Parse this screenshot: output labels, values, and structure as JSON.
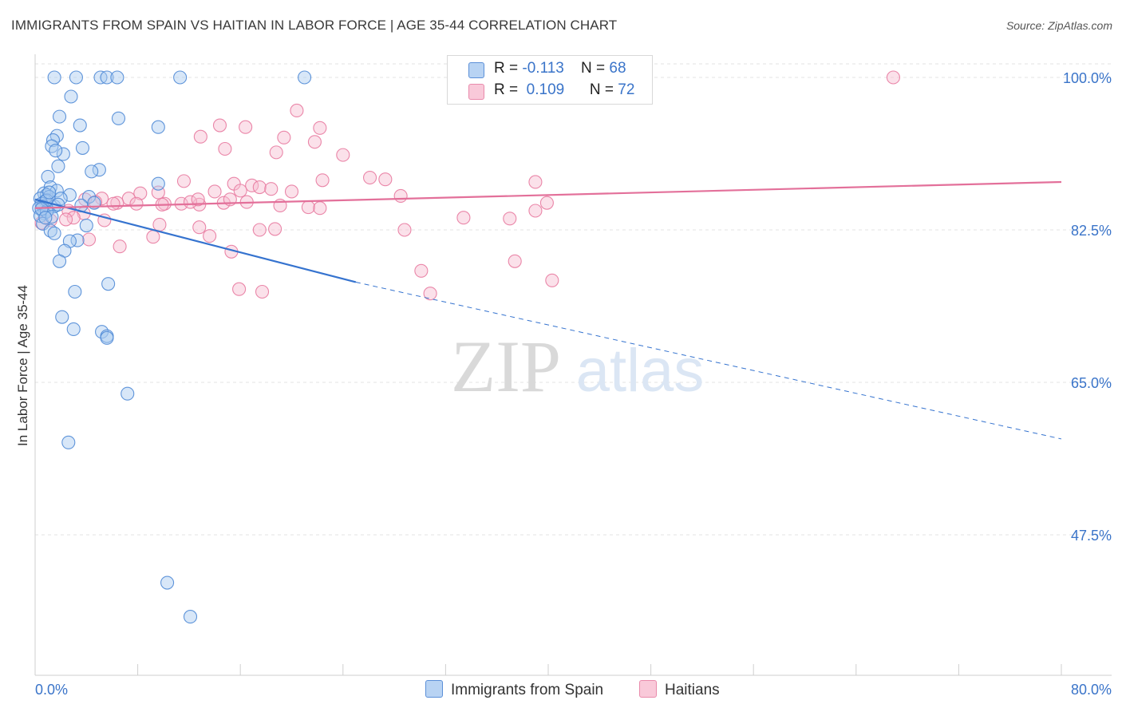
{
  "chart_data": {
    "type": "scatter",
    "title": "IMMIGRANTS FROM SPAIN VS HAITIAN IN LABOR FORCE | AGE 35-44 CORRELATION CHART",
    "source": "Source: ZipAtlas.com",
    "ylabel": "In Labor Force | Age 35-44",
    "xlabel": "",
    "xlim": [
      0,
      80
    ],
    "ylim": [
      32,
      102
    ],
    "x_tick_labels": [
      "0.0%",
      "80.0%"
    ],
    "y_ticks": [
      47.5,
      65.0,
      82.5,
      100.0
    ],
    "y_tick_labels": [
      "47.5%",
      "65.0%",
      "82.5%",
      "100.0%"
    ],
    "watermark": "ZIPatlas",
    "colors": {
      "spain_fill": "#a9c9f0",
      "spain_stroke": "#4f8ad6",
      "spain_line": "#3573cf",
      "haiti_fill": "#f6bcd0",
      "haiti_stroke": "#e87aa0",
      "haiti_line": "#e3709a",
      "grid": "#e3e3e3",
      "tick_text": "#3a74c9"
    },
    "legend": [
      {
        "r_label": "R =",
        "r_value": "-0.113",
        "n_label": "N =",
        "n_value": "68"
      },
      {
        "r_label": "R =",
        "r_value": "0.109",
        "n_label": "N =",
        "n_value": "72"
      }
    ],
    "series": [
      {
        "name": "Immigrants from Spain",
        "trend": {
          "x0": 0,
          "y0": 86.0,
          "x1": 25,
          "y1": 76.5,
          "x_dash_end": 80,
          "y_dash_end": 58.5
        },
        "points": [
          [
            1.5,
            100
          ],
          [
            3.2,
            100
          ],
          [
            5.1,
            100
          ],
          [
            5.6,
            100
          ],
          [
            6.4,
            100
          ],
          [
            11.3,
            100
          ],
          [
            21.0,
            100
          ],
          [
            2.8,
            97.8
          ],
          [
            1.9,
            95.5
          ],
          [
            6.5,
            95.3
          ],
          [
            3.5,
            94.5
          ],
          [
            9.6,
            94.3
          ],
          [
            1.7,
            93.3
          ],
          [
            1.4,
            92.8
          ],
          [
            1.3,
            92.1
          ],
          [
            3.7,
            91.9
          ],
          [
            2.2,
            91.2
          ],
          [
            1.6,
            91.6
          ],
          [
            1.8,
            89.8
          ],
          [
            5.0,
            89.4
          ],
          [
            4.4,
            89.2
          ],
          [
            1.0,
            88.6
          ],
          [
            1.2,
            87.4
          ],
          [
            1.7,
            87.0
          ],
          [
            0.7,
            86.7
          ],
          [
            0.9,
            86.5
          ],
          [
            1.1,
            86.3
          ],
          [
            0.4,
            86.1
          ],
          [
            0.8,
            85.8
          ],
          [
            0.5,
            85.5
          ],
          [
            0.6,
            85.2
          ],
          [
            0.3,
            85.0
          ],
          [
            1.0,
            84.8
          ],
          [
            0.7,
            84.4
          ],
          [
            0.4,
            84.1
          ],
          [
            2.7,
            86.5
          ],
          [
            4.2,
            86.3
          ],
          [
            4.6,
            85.6
          ],
          [
            9.6,
            87.8
          ],
          [
            1.5,
            85.2
          ],
          [
            0.9,
            84.6
          ],
          [
            0.6,
            83.2
          ],
          [
            1.2,
            82.4
          ],
          [
            4.0,
            83.0
          ],
          [
            1.5,
            82.1
          ],
          [
            3.3,
            81.3
          ],
          [
            2.7,
            81.2
          ],
          [
            2.3,
            80.1
          ],
          [
            1.9,
            78.9
          ],
          [
            5.7,
            76.3
          ],
          [
            3.1,
            75.4
          ],
          [
            2.1,
            72.5
          ],
          [
            3.0,
            71.1
          ],
          [
            5.2,
            70.8
          ],
          [
            5.6,
            70.3
          ],
          [
            5.6,
            70.1
          ],
          [
            7.2,
            63.7
          ],
          [
            2.6,
            58.1
          ],
          [
            10.3,
            42.0
          ],
          [
            12.1,
            38.1
          ],
          [
            0.9,
            85.9
          ],
          [
            1.3,
            84.0
          ],
          [
            0.5,
            84.9
          ],
          [
            2.0,
            86.1
          ],
          [
            1.8,
            85.4
          ],
          [
            3.6,
            85.3
          ],
          [
            0.8,
            83.9
          ],
          [
            1.1,
            86.8
          ]
        ]
      },
      {
        "name": "Haitians",
        "trend": {
          "x0": 0,
          "y0": 85.0,
          "x1": 80,
          "y1": 88.0
        },
        "points": [
          [
            66.9,
            100
          ],
          [
            20.4,
            96.2
          ],
          [
            14.4,
            94.5
          ],
          [
            16.4,
            94.3
          ],
          [
            22.2,
            94.2
          ],
          [
            19.4,
            93.1
          ],
          [
            12.9,
            93.2
          ],
          [
            14.8,
            91.8
          ],
          [
            21.8,
            92.6
          ],
          [
            18.8,
            91.4
          ],
          [
            24.0,
            91.1
          ],
          [
            26.1,
            88.5
          ],
          [
            27.3,
            88.3
          ],
          [
            22.4,
            88.2
          ],
          [
            11.6,
            88.1
          ],
          [
            15.5,
            87.8
          ],
          [
            16.9,
            87.6
          ],
          [
            17.5,
            87.4
          ],
          [
            18.4,
            87.2
          ],
          [
            16.0,
            87.0
          ],
          [
            20.0,
            86.9
          ],
          [
            14.0,
            86.9
          ],
          [
            9.6,
            86.8
          ],
          [
            8.2,
            86.7
          ],
          [
            7.3,
            86.1
          ],
          [
            5.2,
            86.1
          ],
          [
            3.9,
            86.0
          ],
          [
            4.7,
            85.7
          ],
          [
            6.4,
            85.6
          ],
          [
            6.1,
            85.5
          ],
          [
            7.9,
            85.5
          ],
          [
            10.1,
            85.5
          ],
          [
            11.4,
            85.5
          ],
          [
            12.8,
            85.4
          ],
          [
            12.1,
            85.7
          ],
          [
            16.5,
            85.7
          ],
          [
            9.9,
            85.4
          ],
          [
            14.7,
            85.6
          ],
          [
            12.7,
            86.0
          ],
          [
            15.2,
            86.0
          ],
          [
            19.1,
            85.3
          ],
          [
            21.3,
            85.1
          ],
          [
            22.2,
            85.0
          ],
          [
            2.6,
            84.7
          ],
          [
            3.8,
            84.4
          ],
          [
            3.0,
            83.9
          ],
          [
            5.4,
            83.6
          ],
          [
            33.4,
            83.9
          ],
          [
            37.0,
            83.8
          ],
          [
            39.0,
            84.7
          ],
          [
            39.9,
            85.6
          ],
          [
            1.2,
            83.6
          ],
          [
            0.5,
            83.3
          ],
          [
            2.4,
            83.7
          ],
          [
            9.7,
            83.1
          ],
          [
            12.8,
            82.8
          ],
          [
            17.5,
            82.5
          ],
          [
            18.7,
            82.6
          ],
          [
            28.8,
            82.5
          ],
          [
            9.2,
            81.7
          ],
          [
            4.2,
            81.4
          ],
          [
            6.6,
            80.6
          ],
          [
            15.3,
            80.0
          ],
          [
            30.1,
            77.8
          ],
          [
            37.4,
            78.9
          ],
          [
            40.3,
            76.7
          ],
          [
            30.8,
            75.2
          ],
          [
            15.9,
            75.7
          ],
          [
            17.7,
            75.4
          ],
          [
            13.6,
            81.8
          ],
          [
            28.5,
            86.4
          ],
          [
            39.0,
            88.0
          ]
        ]
      }
    ]
  }
}
